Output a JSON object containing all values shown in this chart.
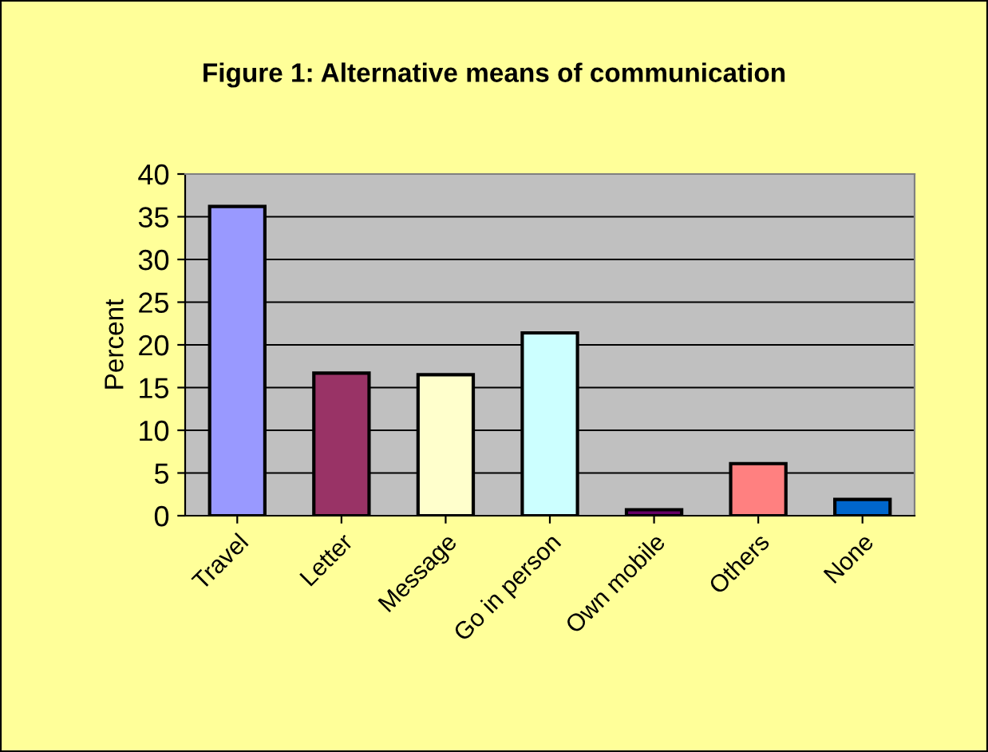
{
  "chart_data": {
    "type": "bar",
    "title": "Figure 1: Alternative means of communication",
    "ylabel": "Percent",
    "categories": [
      "Travel",
      "Letter",
      "Message",
      "Go in person",
      "Own mobile",
      "Others",
      "None"
    ],
    "values": [
      36.2,
      16.7,
      16.5,
      21.4,
      0.7,
      6.1,
      1.9
    ],
    "colors": [
      "#9999ff",
      "#993366",
      "#ffffcc",
      "#ccffff",
      "#660066",
      "#ff8080",
      "#0066cc"
    ],
    "ylim": [
      0,
      40
    ],
    "yticks": [
      0,
      5,
      10,
      15,
      20,
      25,
      30,
      35,
      40
    ],
    "grid": "y",
    "legend": false
  }
}
